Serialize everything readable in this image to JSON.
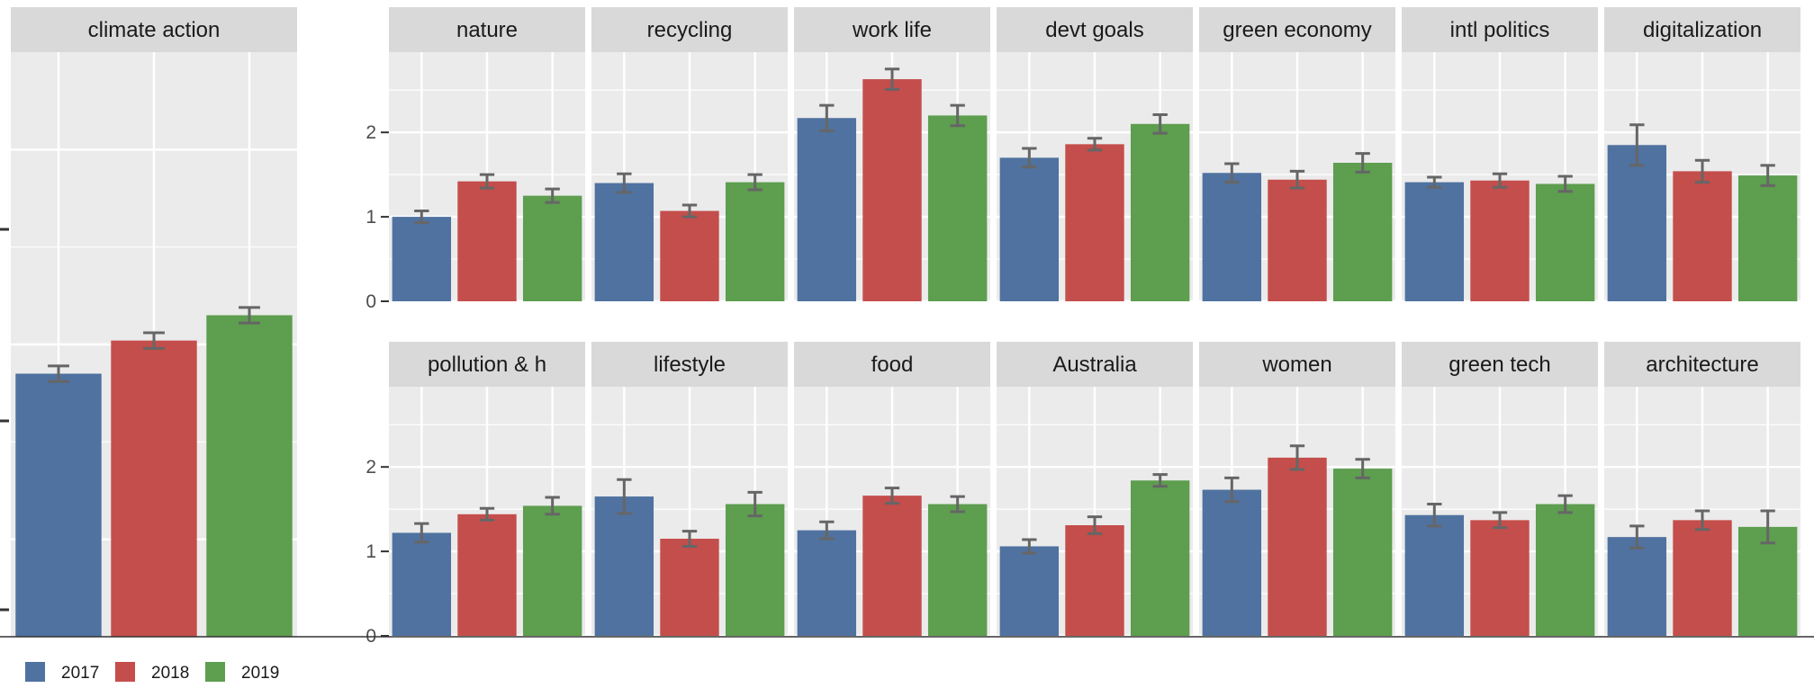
{
  "colors": {
    "2017": "#4F72A0",
    "2018": "#C44E4B",
    "2019": "#5D9E4F",
    "panel_bg": "#EBEBEB",
    "strip_bg": "#D9D9D9",
    "grid": "#FFFFFF",
    "errorbar": "#666666"
  },
  "chart_data": [
    {
      "type": "bar",
      "title": "climate action",
      "series_names": [
        "2017",
        "2018",
        "2019"
      ],
      "values": [
        1.35,
        1.52,
        1.65
      ],
      "errors": [
        0.04,
        0.04,
        0.04
      ],
      "ylim": [
        0,
        3
      ],
      "yticks": [],
      "yticks_visible_labels": false
    },
    {
      "type": "bar",
      "facets": [
        {
          "title": "nature",
          "values": [
            1.0,
            1.42,
            1.25
          ],
          "errors": [
            0.07,
            0.08,
            0.08
          ]
        },
        {
          "title": "recycling",
          "values": [
            1.4,
            1.07,
            1.41
          ],
          "errors": [
            0.11,
            0.07,
            0.09
          ]
        },
        {
          "title": "work life",
          "values": [
            2.17,
            2.63,
            2.2
          ],
          "errors": [
            0.15,
            0.12,
            0.12
          ]
        },
        {
          "title": "devt goals",
          "values": [
            1.7,
            1.86,
            2.1
          ],
          "errors": [
            0.11,
            0.07,
            0.11
          ]
        },
        {
          "title": "green economy",
          "values": [
            1.52,
            1.44,
            1.64
          ],
          "errors": [
            0.11,
            0.1,
            0.11
          ]
        },
        {
          "title": "intl politics",
          "values": [
            1.41,
            1.43,
            1.39
          ],
          "errors": [
            0.06,
            0.08,
            0.09
          ]
        },
        {
          "title": "digitalization",
          "values": [
            1.85,
            1.54,
            1.49
          ],
          "errors": [
            0.24,
            0.13,
            0.12
          ]
        },
        {
          "title": "pollution & h",
          "values": [
            1.22,
            1.44,
            1.54
          ],
          "errors": [
            0.11,
            0.07,
            0.1
          ]
        },
        {
          "title": "lifestyle",
          "values": [
            1.65,
            1.15,
            1.56
          ],
          "errors": [
            0.2,
            0.09,
            0.14
          ]
        },
        {
          "title": "food",
          "values": [
            1.25,
            1.66,
            1.56
          ],
          "errors": [
            0.1,
            0.09,
            0.09
          ]
        },
        {
          "title": "Australia",
          "values": [
            1.06,
            1.31,
            1.84
          ],
          "errors": [
            0.08,
            0.1,
            0.07
          ]
        },
        {
          "title": "women",
          "values": [
            1.73,
            2.11,
            1.98
          ],
          "errors": [
            0.14,
            0.14,
            0.11
          ]
        },
        {
          "title": "green tech",
          "values": [
            1.43,
            1.37,
            1.56
          ],
          "errors": [
            0.13,
            0.09,
            0.1
          ]
        },
        {
          "title": "architecture",
          "values": [
            1.17,
            1.37,
            1.29
          ],
          "errors": [
            0.13,
            0.11,
            0.19
          ]
        }
      ],
      "series_names": [
        "2017",
        "2018",
        "2019"
      ],
      "ylim": [
        0,
        2.95
      ],
      "yticks": [
        0,
        1,
        2
      ],
      "grid": true
    }
  ],
  "legend": {
    "position": "bottom-left",
    "items": [
      {
        "label": "2017",
        "color_key": "2017"
      },
      {
        "label": "2018",
        "color_key": "2018"
      },
      {
        "label": "2019",
        "color_key": "2019"
      }
    ]
  }
}
